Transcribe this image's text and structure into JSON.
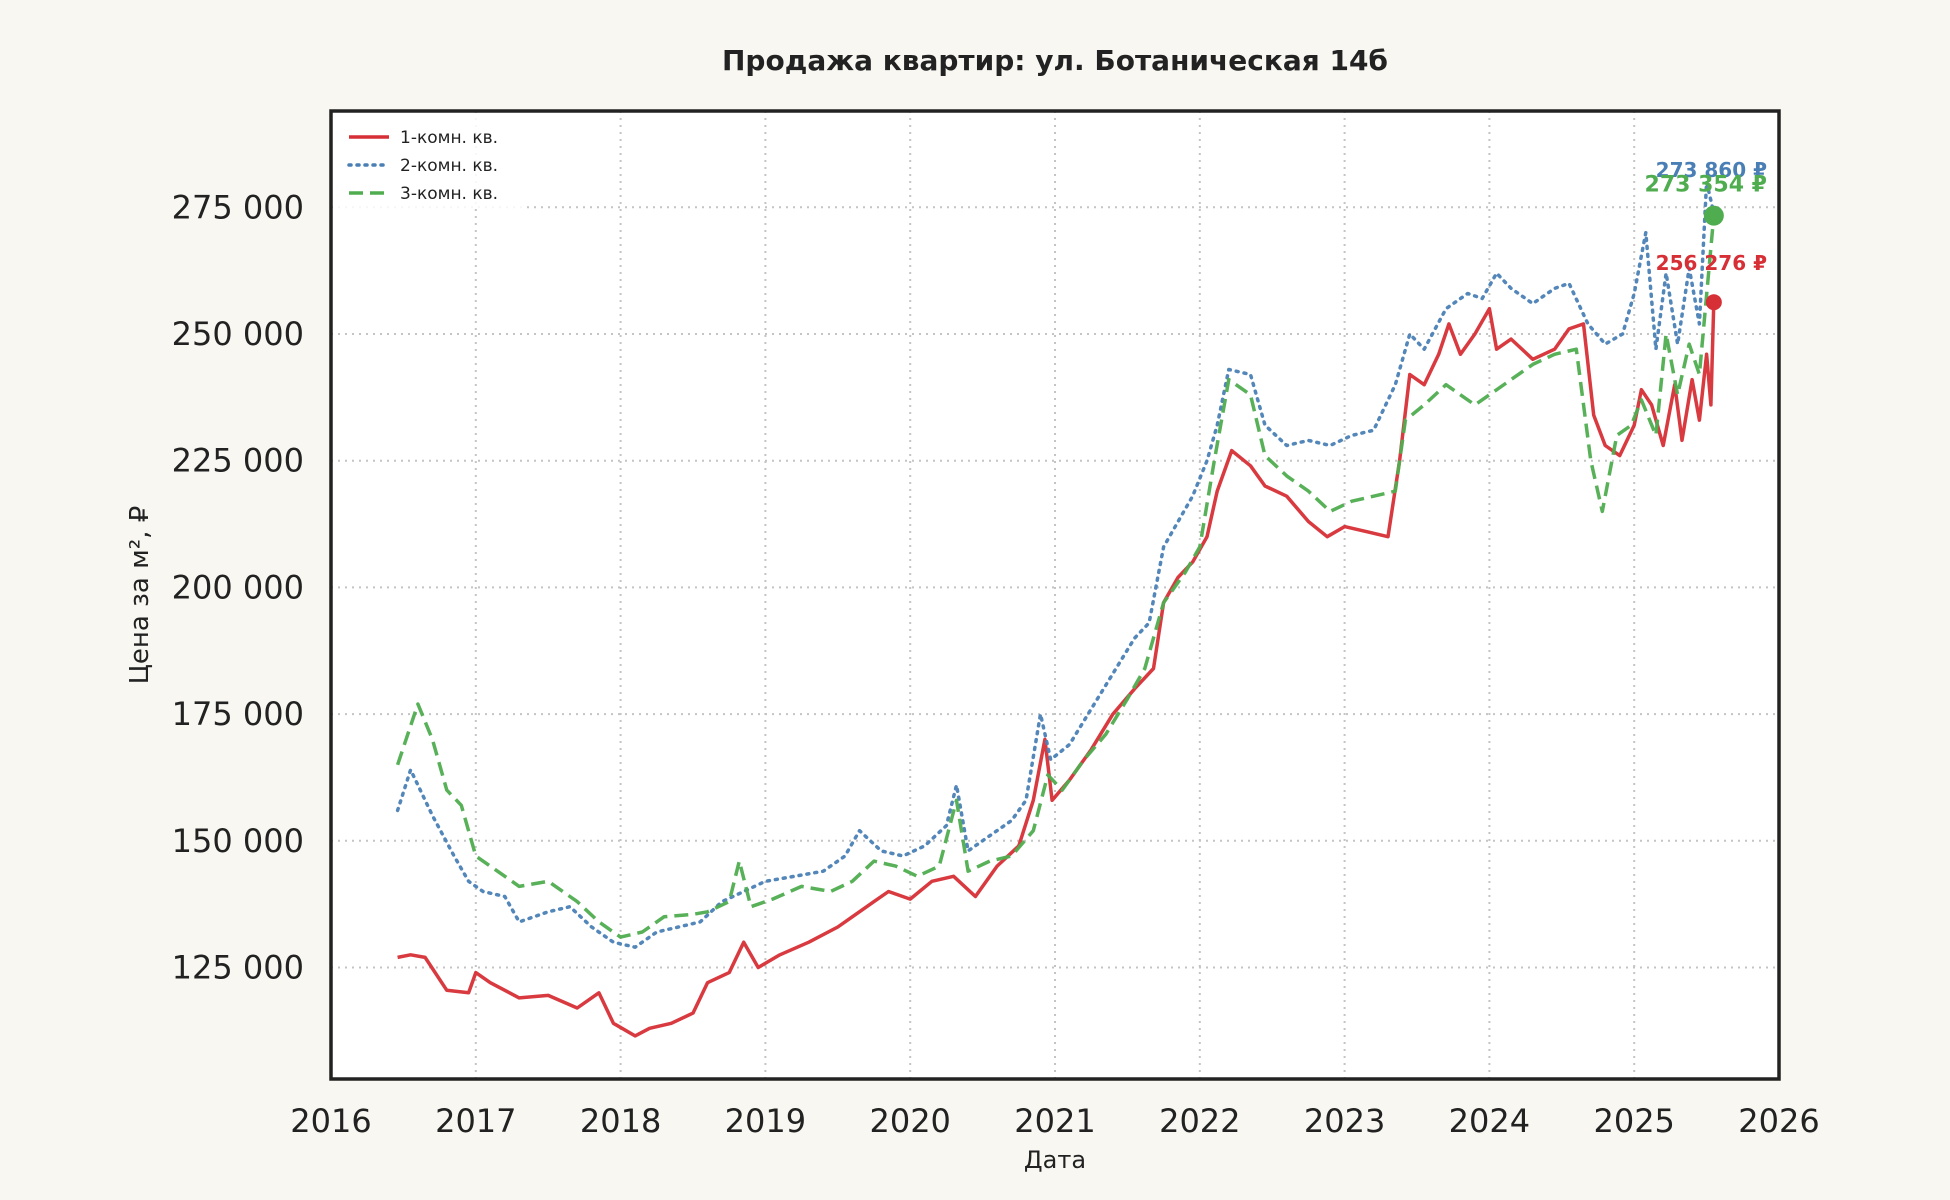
{
  "chart_data": {
    "type": "line",
    "title": "Продажа квартир: ул. Ботаническая 14б",
    "xlabel": "Дата",
    "ylabel": "Цена за м², ₽",
    "xlim": [
      2016,
      2026
    ],
    "ylim": [
      103000,
      294000
    ],
    "x_ticks": [
      2016,
      2017,
      2018,
      2019,
      2020,
      2021,
      2022,
      2023,
      2024,
      2025,
      2026
    ],
    "x_tick_labels": [
      "2016",
      "2017",
      "2018",
      "2019",
      "2020",
      "2021",
      "2022",
      "2023",
      "2024",
      "2025",
      "2026"
    ],
    "y_ticks": [
      125000,
      150000,
      175000,
      200000,
      225000,
      250000,
      275000
    ],
    "y_tick_labels": [
      "125 000",
      "150 000",
      "175 000",
      "200 000",
      "225 000",
      "250 000",
      "275 000"
    ],
    "grid": true,
    "legend_position": "top-left",
    "series": [
      {
        "name": "1-комн. кв.",
        "color": "#d62f36",
        "style": "solid",
        "end_label": "256 276 ₽",
        "end_value": 256276,
        "points": [
          [
            2016.46,
            127000
          ],
          [
            2016.55,
            127500
          ],
          [
            2016.65,
            127000
          ],
          [
            2016.8,
            120500
          ],
          [
            2016.95,
            120000
          ],
          [
            2017.0,
            124000
          ],
          [
            2017.1,
            122000
          ],
          [
            2017.3,
            119000
          ],
          [
            2017.5,
            119500
          ],
          [
            2017.7,
            117000
          ],
          [
            2017.85,
            120000
          ],
          [
            2017.95,
            114000
          ],
          [
            2018.1,
            111500
          ],
          [
            2018.2,
            113000
          ],
          [
            2018.35,
            114000
          ],
          [
            2018.5,
            116000
          ],
          [
            2018.6,
            122000
          ],
          [
            2018.75,
            124000
          ],
          [
            2018.85,
            130000
          ],
          [
            2018.95,
            125000
          ],
          [
            2019.1,
            127500
          ],
          [
            2019.3,
            130000
          ],
          [
            2019.5,
            133000
          ],
          [
            2019.6,
            135000
          ],
          [
            2019.75,
            138000
          ],
          [
            2019.85,
            140000
          ],
          [
            2020.0,
            138500
          ],
          [
            2020.15,
            142000
          ],
          [
            2020.3,
            143000
          ],
          [
            2020.45,
            139000
          ],
          [
            2020.6,
            145000
          ],
          [
            2020.75,
            149000
          ],
          [
            2020.85,
            158000
          ],
          [
            2020.93,
            170000
          ],
          [
            2020.98,
            158000
          ],
          [
            2021.1,
            162000
          ],
          [
            2021.25,
            168000
          ],
          [
            2021.4,
            175000
          ],
          [
            2021.55,
            180000
          ],
          [
            2021.68,
            184000
          ],
          [
            2021.75,
            197000
          ],
          [
            2021.85,
            202000
          ],
          [
            2021.95,
            205000
          ],
          [
            2022.05,
            210000
          ],
          [
            2022.12,
            219000
          ],
          [
            2022.22,
            227000
          ],
          [
            2022.35,
            224000
          ],
          [
            2022.45,
            220000
          ],
          [
            2022.6,
            218000
          ],
          [
            2022.75,
            213000
          ],
          [
            2022.88,
            210000
          ],
          [
            2023.0,
            212000
          ],
          [
            2023.15,
            211000
          ],
          [
            2023.3,
            210000
          ],
          [
            2023.38,
            225000
          ],
          [
            2023.45,
            242000
          ],
          [
            2023.55,
            240000
          ],
          [
            2023.65,
            246000
          ],
          [
            2023.72,
            252000
          ],
          [
            2023.8,
            246000
          ],
          [
            2023.9,
            250000
          ],
          [
            2024.0,
            255000
          ],
          [
            2024.05,
            247000
          ],
          [
            2024.15,
            249000
          ],
          [
            2024.3,
            245000
          ],
          [
            2024.45,
            247000
          ],
          [
            2024.55,
            251000
          ],
          [
            2024.65,
            252000
          ],
          [
            2024.72,
            234000
          ],
          [
            2024.8,
            228000
          ],
          [
            2024.9,
            226000
          ],
          [
            2025.0,
            232000
          ],
          [
            2025.05,
            239000
          ],
          [
            2025.12,
            236000
          ],
          [
            2025.2,
            228000
          ],
          [
            2025.28,
            240000
          ],
          [
            2025.33,
            229000
          ],
          [
            2025.4,
            241000
          ],
          [
            2025.45,
            233000
          ],
          [
            2025.5,
            246000
          ],
          [
            2025.53,
            236000
          ],
          [
            2025.55,
            256276
          ]
        ]
      },
      {
        "name": "2-комн. кв.",
        "color": "#4a7fb5",
        "style": "dotted",
        "end_label": "273 860 ₽",
        "end_value": 273860,
        "points": [
          [
            2016.46,
            156000
          ],
          [
            2016.55,
            164000
          ],
          [
            2016.7,
            155000
          ],
          [
            2016.85,
            147000
          ],
          [
            2016.95,
            142000
          ],
          [
            2017.05,
            140000
          ],
          [
            2017.2,
            139000
          ],
          [
            2017.3,
            134000
          ],
          [
            2017.5,
            136000
          ],
          [
            2017.65,
            137000
          ],
          [
            2017.8,
            133000
          ],
          [
            2017.95,
            130000
          ],
          [
            2018.1,
            129000
          ],
          [
            2018.25,
            132000
          ],
          [
            2018.4,
            133000
          ],
          [
            2018.55,
            134000
          ],
          [
            2018.7,
            138000
          ],
          [
            2018.85,
            140000
          ],
          [
            2019.0,
            142000
          ],
          [
            2019.2,
            143000
          ],
          [
            2019.4,
            144000
          ],
          [
            2019.55,
            147000
          ],
          [
            2019.65,
            152000
          ],
          [
            2019.8,
            148000
          ],
          [
            2019.95,
            147000
          ],
          [
            2020.1,
            149000
          ],
          [
            2020.25,
            153000
          ],
          [
            2020.32,
            161000
          ],
          [
            2020.4,
            148000
          ],
          [
            2020.55,
            151000
          ],
          [
            2020.7,
            154000
          ],
          [
            2020.8,
            158000
          ],
          [
            2020.9,
            175000
          ],
          [
            2020.97,
            166000
          ],
          [
            2021.1,
            169000
          ],
          [
            2021.25,
            176000
          ],
          [
            2021.4,
            183000
          ],
          [
            2021.55,
            190000
          ],
          [
            2021.65,
            193000
          ],
          [
            2021.75,
            208000
          ],
          [
            2021.85,
            213000
          ],
          [
            2021.95,
            218000
          ],
          [
            2022.05,
            225000
          ],
          [
            2022.12,
            232000
          ],
          [
            2022.2,
            243000
          ],
          [
            2022.35,
            242000
          ],
          [
            2022.45,
            232000
          ],
          [
            2022.6,
            228000
          ],
          [
            2022.75,
            229000
          ],
          [
            2022.9,
            228000
          ],
          [
            2023.05,
            230000
          ],
          [
            2023.2,
            231000
          ],
          [
            2023.35,
            240000
          ],
          [
            2023.45,
            250000
          ],
          [
            2023.55,
            247000
          ],
          [
            2023.7,
            255000
          ],
          [
            2023.85,
            258000
          ],
          [
            2023.95,
            257000
          ],
          [
            2024.05,
            262000
          ],
          [
            2024.15,
            259000
          ],
          [
            2024.3,
            256000
          ],
          [
            2024.45,
            259000
          ],
          [
            2024.55,
            260000
          ],
          [
            2024.68,
            252000
          ],
          [
            2024.8,
            248000
          ],
          [
            2024.92,
            250000
          ],
          [
            2025.0,
            258000
          ],
          [
            2025.08,
            270000
          ],
          [
            2025.15,
            247000
          ],
          [
            2025.22,
            262000
          ],
          [
            2025.3,
            248000
          ],
          [
            2025.38,
            263000
          ],
          [
            2025.45,
            252000
          ],
          [
            2025.5,
            280000
          ],
          [
            2025.55,
            273860
          ]
        ]
      },
      {
        "name": "3-комн. кв.",
        "color": "#4fad4f",
        "style": "dashed",
        "end_label": "273 354 ₽",
        "end_value": 273354,
        "points": [
          [
            2016.46,
            165000
          ],
          [
            2016.6,
            177000
          ],
          [
            2016.7,
            170000
          ],
          [
            2016.8,
            160000
          ],
          [
            2016.9,
            157000
          ],
          [
            2017.0,
            147000
          ],
          [
            2017.15,
            144000
          ],
          [
            2017.3,
            141000
          ],
          [
            2017.5,
            142000
          ],
          [
            2017.7,
            138000
          ],
          [
            2017.85,
            134000
          ],
          [
            2018.0,
            131000
          ],
          [
            2018.15,
            132000
          ],
          [
            2018.3,
            135000
          ],
          [
            2018.5,
            135500
          ],
          [
            2018.6,
            136000
          ],
          [
            2018.75,
            138000
          ],
          [
            2018.82,
            146000
          ],
          [
            2018.9,
            137000
          ],
          [
            2019.05,
            138500
          ],
          [
            2019.25,
            141000
          ],
          [
            2019.45,
            140000
          ],
          [
            2019.6,
            142000
          ],
          [
            2019.75,
            146000
          ],
          [
            2019.9,
            145000
          ],
          [
            2020.05,
            143000
          ],
          [
            2020.2,
            145000
          ],
          [
            2020.32,
            158000
          ],
          [
            2020.4,
            144000
          ],
          [
            2020.55,
            146000
          ],
          [
            2020.7,
            147000
          ],
          [
            2020.85,
            152000
          ],
          [
            2020.95,
            163000
          ],
          [
            2021.05,
            160000
          ],
          [
            2021.2,
            166000
          ],
          [
            2021.35,
            171000
          ],
          [
            2021.5,
            178000
          ],
          [
            2021.62,
            184000
          ],
          [
            2021.75,
            197000
          ],
          [
            2021.9,
            203000
          ],
          [
            2022.0,
            208000
          ],
          [
            2022.1,
            225000
          ],
          [
            2022.2,
            241000
          ],
          [
            2022.35,
            238000
          ],
          [
            2022.45,
            226000
          ],
          [
            2022.6,
            222000
          ],
          [
            2022.75,
            219000
          ],
          [
            2022.9,
            215000
          ],
          [
            2023.05,
            217000
          ],
          [
            2023.2,
            218000
          ],
          [
            2023.35,
            219000
          ],
          [
            2023.42,
            233000
          ],
          [
            2023.55,
            236000
          ],
          [
            2023.7,
            240000
          ],
          [
            2023.8,
            238000
          ],
          [
            2023.9,
            236000
          ],
          [
            2024.0,
            238000
          ],
          [
            2024.15,
            241000
          ],
          [
            2024.3,
            244000
          ],
          [
            2024.45,
            246000
          ],
          [
            2024.6,
            247000
          ],
          [
            2024.7,
            225000
          ],
          [
            2024.78,
            215000
          ],
          [
            2024.88,
            230000
          ],
          [
            2024.98,
            232000
          ],
          [
            2025.05,
            237000
          ],
          [
            2025.15,
            230000
          ],
          [
            2025.22,
            250000
          ],
          [
            2025.3,
            238000
          ],
          [
            2025.38,
            248000
          ],
          [
            2025.45,
            242000
          ],
          [
            2025.55,
            273354
          ]
        ]
      }
    ]
  }
}
